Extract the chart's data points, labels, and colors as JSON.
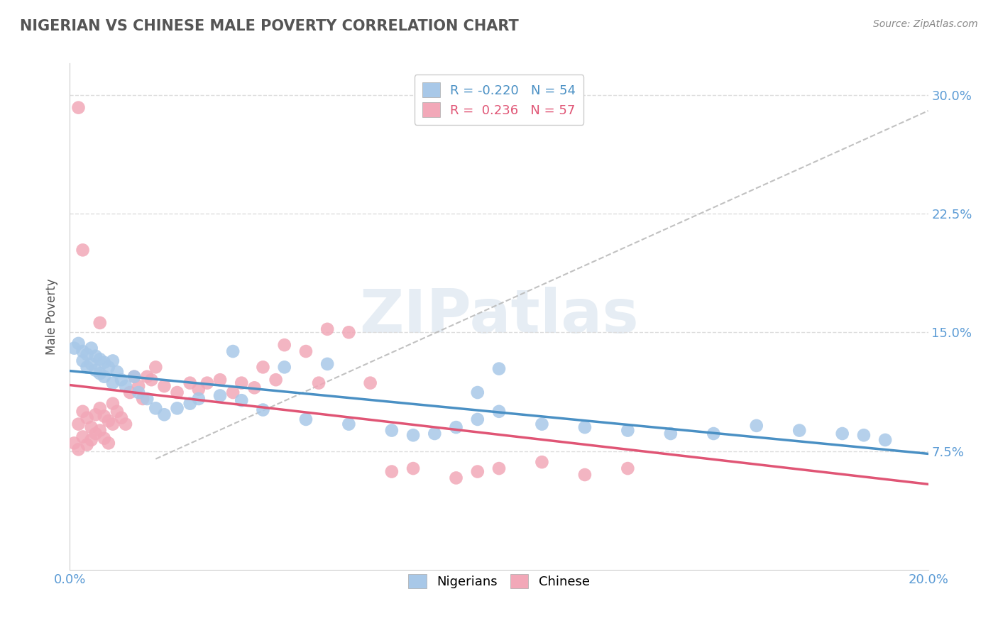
{
  "title": "NIGERIAN VS CHINESE MALE POVERTY CORRELATION CHART",
  "source": "Source: ZipAtlas.com",
  "ylabel": "Male Poverty",
  "watermark": "ZIPatlas",
  "xlim": [
    0.0,
    0.2
  ],
  "ylim": [
    0.0,
    0.32
  ],
  "yticks": [
    0.075,
    0.15,
    0.225,
    0.3
  ],
  "ytick_labels": [
    "7.5%",
    "15.0%",
    "22.5%",
    "30.0%"
  ],
  "xtick_positions": [
    0.0,
    0.04,
    0.08,
    0.12,
    0.16,
    0.2
  ],
  "xtick_labels": [
    "0.0%",
    "",
    "",
    "",
    "",
    "20.0%"
  ],
  "nigerian_R": -0.22,
  "nigerian_N": 54,
  "chinese_R": 0.236,
  "chinese_N": 57,
  "nigerian_color": "#A8C8E8",
  "chinese_color": "#F2A8B8",
  "nigerian_line_color": "#4A90C4",
  "chinese_line_color": "#E05575",
  "background_color": "#FFFFFF",
  "grid_color": "#DDDDDD",
  "nigerian_x": [
    0.001,
    0.002,
    0.003,
    0.003,
    0.004,
    0.004,
    0.005,
    0.005,
    0.006,
    0.006,
    0.007,
    0.007,
    0.008,
    0.008,
    0.009,
    0.01,
    0.01,
    0.011,
    0.012,
    0.013,
    0.015,
    0.016,
    0.018,
    0.02,
    0.022,
    0.025,
    0.028,
    0.03,
    0.035,
    0.04,
    0.045,
    0.05,
    0.055,
    0.065,
    0.075,
    0.08,
    0.085,
    0.09,
    0.095,
    0.1,
    0.11,
    0.12,
    0.13,
    0.14,
    0.15,
    0.16,
    0.17,
    0.18,
    0.185,
    0.038,
    0.06,
    0.095,
    0.1,
    0.19
  ],
  "nigerian_y": [
    0.14,
    0.143,
    0.138,
    0.132,
    0.136,
    0.128,
    0.14,
    0.13,
    0.135,
    0.126,
    0.133,
    0.124,
    0.131,
    0.122,
    0.128,
    0.132,
    0.118,
    0.125,
    0.12,
    0.116,
    0.122,
    0.112,
    0.108,
    0.102,
    0.098,
    0.102,
    0.105,
    0.108,
    0.11,
    0.107,
    0.101,
    0.128,
    0.095,
    0.092,
    0.088,
    0.085,
    0.086,
    0.09,
    0.095,
    0.127,
    0.092,
    0.09,
    0.088,
    0.086,
    0.086,
    0.091,
    0.088,
    0.086,
    0.085,
    0.138,
    0.13,
    0.112,
    0.1,
    0.082
  ],
  "chinese_x": [
    0.001,
    0.002,
    0.002,
    0.003,
    0.003,
    0.004,
    0.004,
    0.005,
    0.005,
    0.006,
    0.006,
    0.007,
    0.007,
    0.008,
    0.008,
    0.009,
    0.009,
    0.01,
    0.01,
    0.011,
    0.012,
    0.013,
    0.014,
    0.015,
    0.016,
    0.017,
    0.018,
    0.019,
    0.02,
    0.022,
    0.025,
    0.028,
    0.03,
    0.032,
    0.035,
    0.038,
    0.04,
    0.043,
    0.045,
    0.048,
    0.05,
    0.055,
    0.058,
    0.06,
    0.065,
    0.07,
    0.075,
    0.08,
    0.09,
    0.095,
    0.1,
    0.11,
    0.12,
    0.13,
    0.002,
    0.003,
    0.007
  ],
  "chinese_y": [
    0.08,
    0.076,
    0.092,
    0.084,
    0.1,
    0.079,
    0.096,
    0.09,
    0.082,
    0.098,
    0.086,
    0.102,
    0.088,
    0.097,
    0.083,
    0.094,
    0.08,
    0.105,
    0.092,
    0.1,
    0.096,
    0.092,
    0.112,
    0.122,
    0.116,
    0.108,
    0.122,
    0.12,
    0.128,
    0.116,
    0.112,
    0.118,
    0.114,
    0.118,
    0.12,
    0.112,
    0.118,
    0.115,
    0.128,
    0.12,
    0.142,
    0.138,
    0.118,
    0.152,
    0.15,
    0.118,
    0.062,
    0.064,
    0.058,
    0.062,
    0.064,
    0.068,
    0.06,
    0.064,
    0.292,
    0.202,
    0.156
  ]
}
